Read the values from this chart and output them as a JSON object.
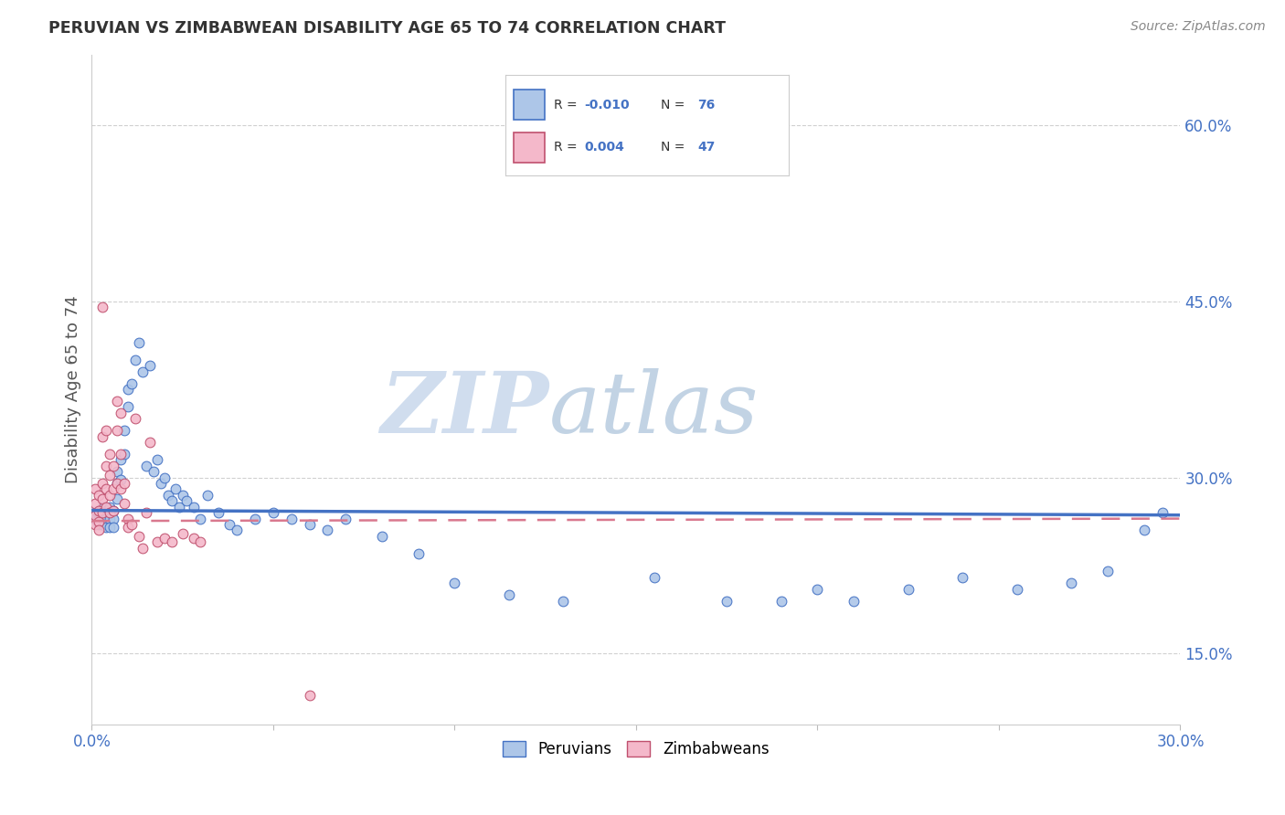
{
  "title": "PERUVIAN VS ZIMBABWEAN DISABILITY AGE 65 TO 74 CORRELATION CHART",
  "source_text": "Source: ZipAtlas.com",
  "ylabel": "Disability Age 65 to 74",
  "xlim": [
    0.0,
    0.3
  ],
  "ylim": [
    0.09,
    0.66
  ],
  "ytick_labels": [
    "15.0%",
    "30.0%",
    "45.0%",
    "60.0%"
  ],
  "ytick_values": [
    0.15,
    0.3,
    0.45,
    0.6
  ],
  "xtick_positions": [
    0.0,
    0.05,
    0.1,
    0.15,
    0.2,
    0.25,
    0.3
  ],
  "xtick_labels": [
    "0.0%",
    "",
    "",
    "",
    "",
    "",
    "30.0%"
  ],
  "peruvian_color": "#adc6e8",
  "peruvian_edge_color": "#4472c4",
  "zimbabwean_color": "#f4b8ca",
  "zimbabwean_edge_color": "#c0506e",
  "peruvian_line_color": "#4472c4",
  "zimbabwean_line_color": "#d9788e",
  "R_peruvian": -0.01,
  "N_peruvian": 76,
  "R_zimbabwean": 0.004,
  "N_zimbabwean": 47,
  "peru_line_y_at_0": 0.272,
  "peru_line_y_at_30": 0.268,
  "zimb_line_y_at_0": 0.263,
  "zimb_line_y_at_30": 0.265,
  "peru_x": [
    0.001,
    0.001,
    0.001,
    0.002,
    0.002,
    0.002,
    0.002,
    0.003,
    0.003,
    0.003,
    0.003,
    0.004,
    0.004,
    0.004,
    0.004,
    0.005,
    0.005,
    0.005,
    0.005,
    0.006,
    0.006,
    0.006,
    0.007,
    0.007,
    0.007,
    0.008,
    0.008,
    0.009,
    0.009,
    0.01,
    0.01,
    0.011,
    0.012,
    0.013,
    0.014,
    0.015,
    0.016,
    0.017,
    0.018,
    0.019,
    0.02,
    0.021,
    0.022,
    0.023,
    0.024,
    0.025,
    0.026,
    0.028,
    0.03,
    0.032,
    0.035,
    0.038,
    0.04,
    0.045,
    0.05,
    0.055,
    0.06,
    0.065,
    0.07,
    0.08,
    0.09,
    0.1,
    0.115,
    0.13,
    0.155,
    0.175,
    0.19,
    0.2,
    0.21,
    0.225,
    0.24,
    0.255,
    0.27,
    0.28,
    0.29,
    0.295
  ],
  "peru_y": [
    0.27,
    0.268,
    0.265,
    0.272,
    0.268,
    0.265,
    0.26,
    0.275,
    0.268,
    0.265,
    0.26,
    0.272,
    0.268,
    0.265,
    0.258,
    0.275,
    0.27,
    0.265,
    0.258,
    0.272,
    0.265,
    0.258,
    0.305,
    0.295,
    0.282,
    0.315,
    0.298,
    0.32,
    0.34,
    0.36,
    0.375,
    0.38,
    0.4,
    0.415,
    0.39,
    0.31,
    0.395,
    0.305,
    0.315,
    0.295,
    0.3,
    0.285,
    0.28,
    0.29,
    0.275,
    0.285,
    0.28,
    0.275,
    0.265,
    0.285,
    0.27,
    0.26,
    0.255,
    0.265,
    0.27,
    0.265,
    0.26,
    0.255,
    0.265,
    0.25,
    0.235,
    0.21,
    0.2,
    0.195,
    0.215,
    0.195,
    0.195,
    0.205,
    0.195,
    0.205,
    0.215,
    0.205,
    0.21,
    0.22,
    0.255,
    0.27
  ],
  "zimb_x": [
    0.001,
    0.001,
    0.001,
    0.001,
    0.002,
    0.002,
    0.002,
    0.002,
    0.003,
    0.003,
    0.003,
    0.003,
    0.003,
    0.004,
    0.004,
    0.004,
    0.004,
    0.005,
    0.005,
    0.005,
    0.005,
    0.006,
    0.006,
    0.006,
    0.007,
    0.007,
    0.007,
    0.008,
    0.008,
    0.008,
    0.009,
    0.009,
    0.01,
    0.01,
    0.011,
    0.012,
    0.013,
    0.014,
    0.015,
    0.016,
    0.018,
    0.02,
    0.022,
    0.025,
    0.028,
    0.03,
    0.06
  ],
  "zimb_y": [
    0.29,
    0.278,
    0.268,
    0.26,
    0.285,
    0.272,
    0.262,
    0.255,
    0.445,
    0.335,
    0.295,
    0.282,
    0.27,
    0.34,
    0.31,
    0.29,
    0.275,
    0.32,
    0.302,
    0.285,
    0.27,
    0.31,
    0.29,
    0.272,
    0.365,
    0.34,
    0.295,
    0.355,
    0.32,
    0.29,
    0.295,
    0.278,
    0.265,
    0.258,
    0.26,
    0.35,
    0.25,
    0.24,
    0.27,
    0.33,
    0.245,
    0.248,
    0.245,
    0.252,
    0.248,
    0.245,
    0.115
  ],
  "watermark_zip": "ZIP",
  "watermark_atlas": "atlas",
  "background_color": "#ffffff",
  "grid_color": "#d0d0d0",
  "tick_color": "#4472c4"
}
